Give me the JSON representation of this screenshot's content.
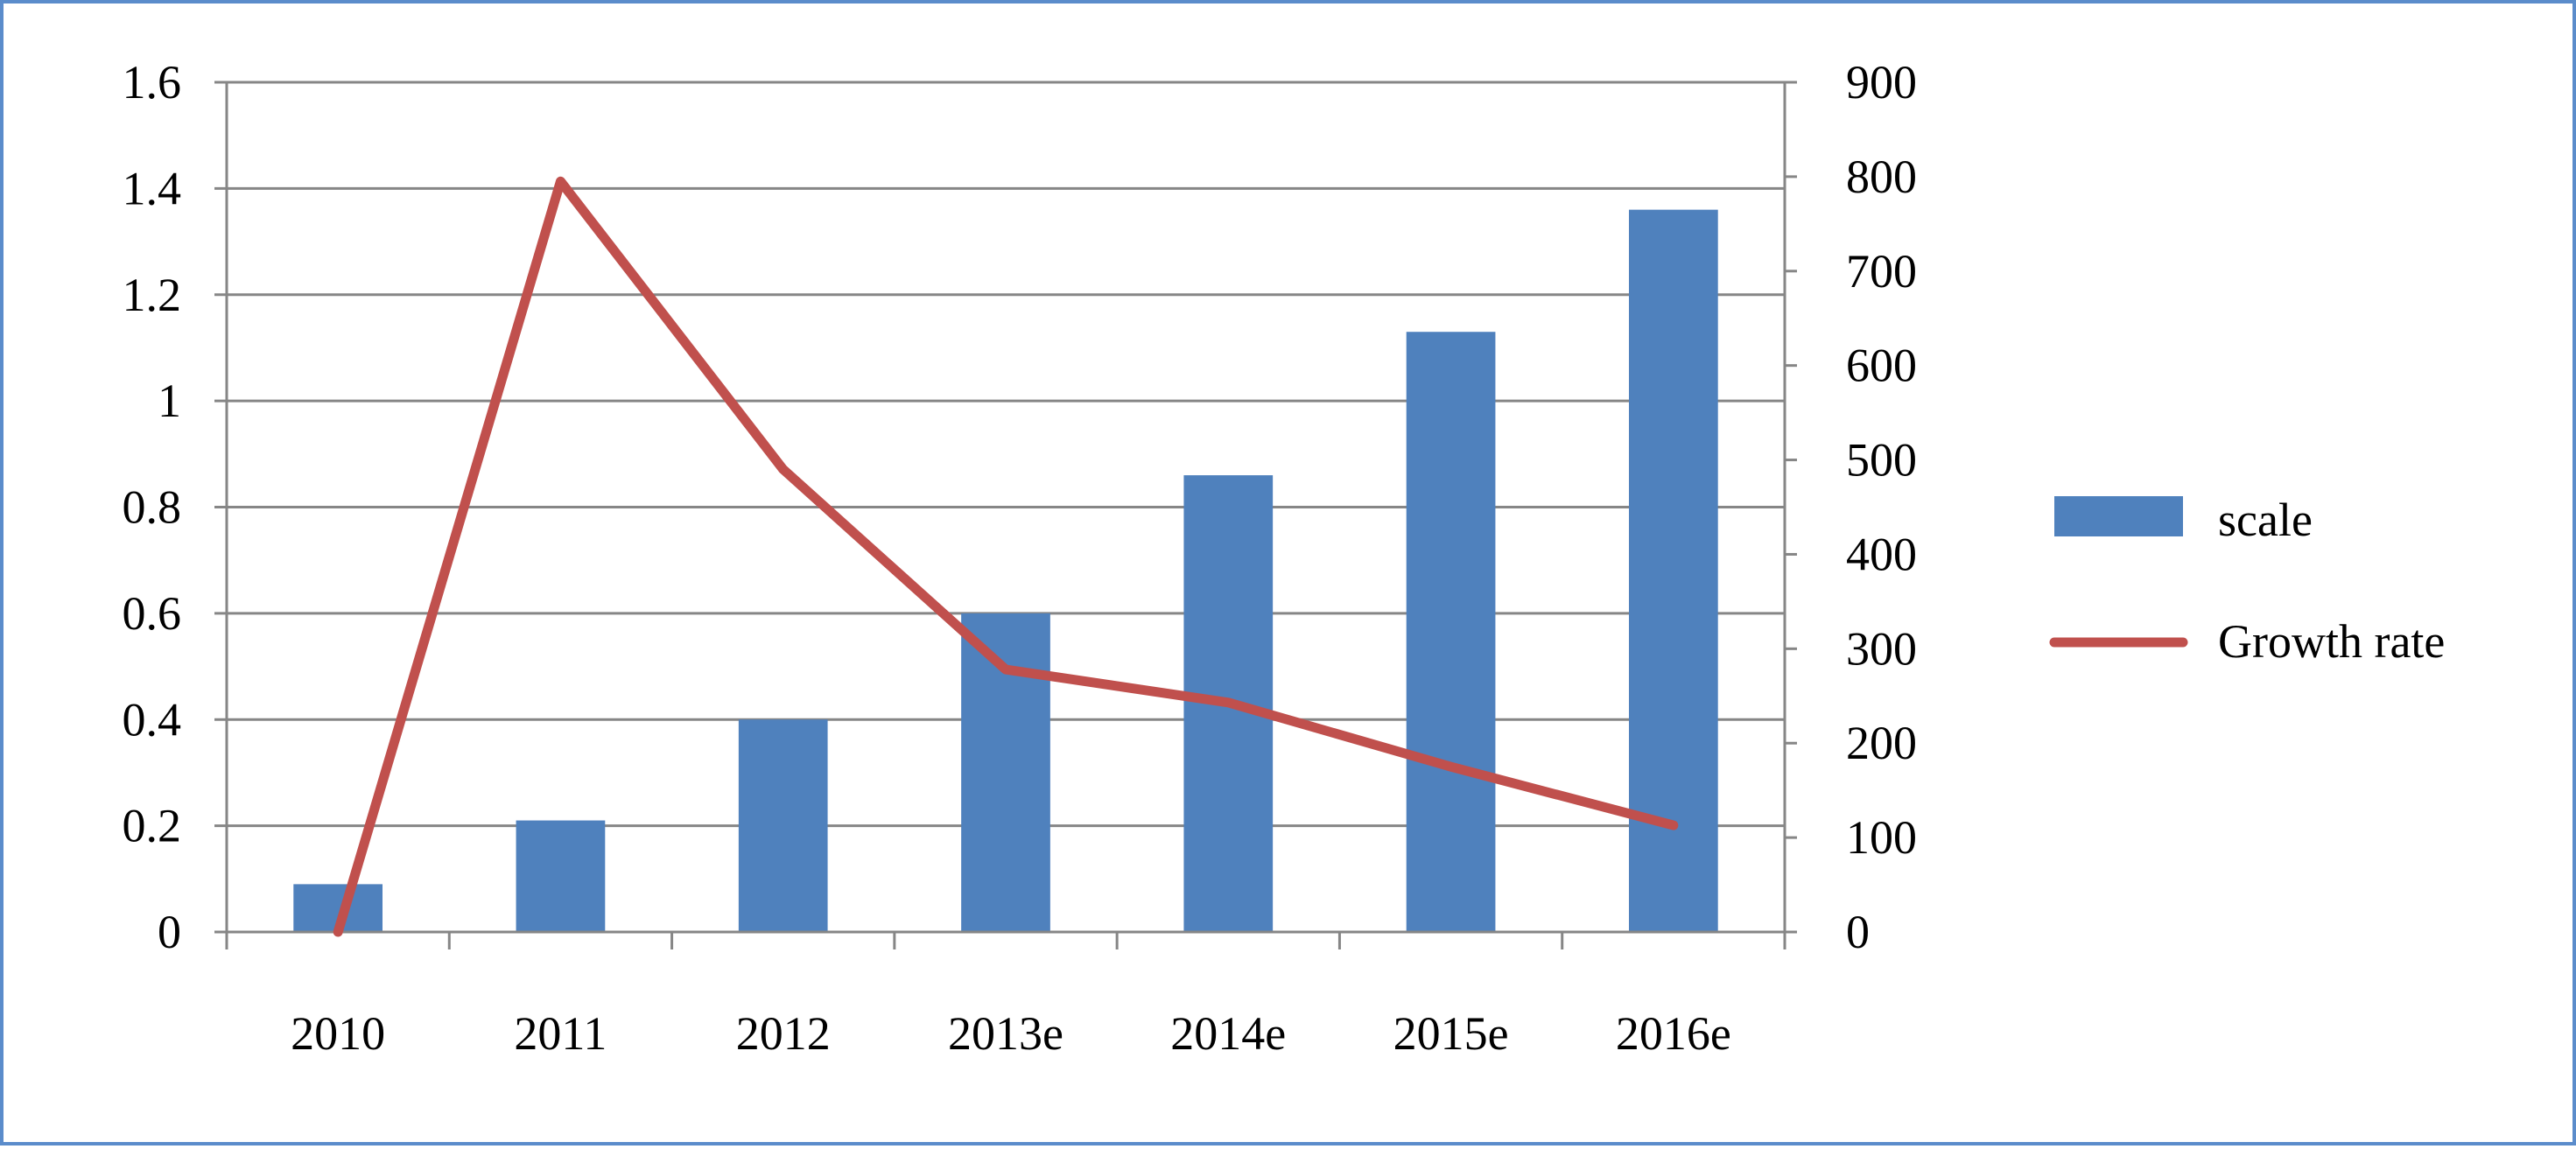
{
  "chart_data": {
    "type": "bar",
    "categories": [
      "2010",
      "2011",
      "2012",
      "2013e",
      "2014e",
      "2015e",
      "2016e"
    ],
    "series": [
      {
        "name": "scale",
        "type": "bar",
        "axis": "left",
        "values": [
          0.09,
          0.21,
          0.4,
          0.6,
          0.86,
          1.13,
          1.36
        ],
        "color": "#4f81bd"
      },
      {
        "name": "Growth rate",
        "type": "line",
        "axis": "right",
        "values": [
          0,
          795,
          490,
          278,
          243,
          175,
          113
        ],
        "color": "#c0504d"
      }
    ],
    "y_left": {
      "lim": [
        0,
        1.6
      ],
      "ticks": [
        "0",
        "0.2",
        "0.4",
        "0.6",
        "0.8",
        "1",
        "1.2",
        "1.4",
        "1.6"
      ]
    },
    "y_right": {
      "lim": [
        0,
        900
      ],
      "ticks": [
        "0",
        "100",
        "200",
        "300",
        "400",
        "500",
        "600",
        "700",
        "800",
        "900"
      ]
    },
    "grid": true,
    "legend_position": "right"
  }
}
